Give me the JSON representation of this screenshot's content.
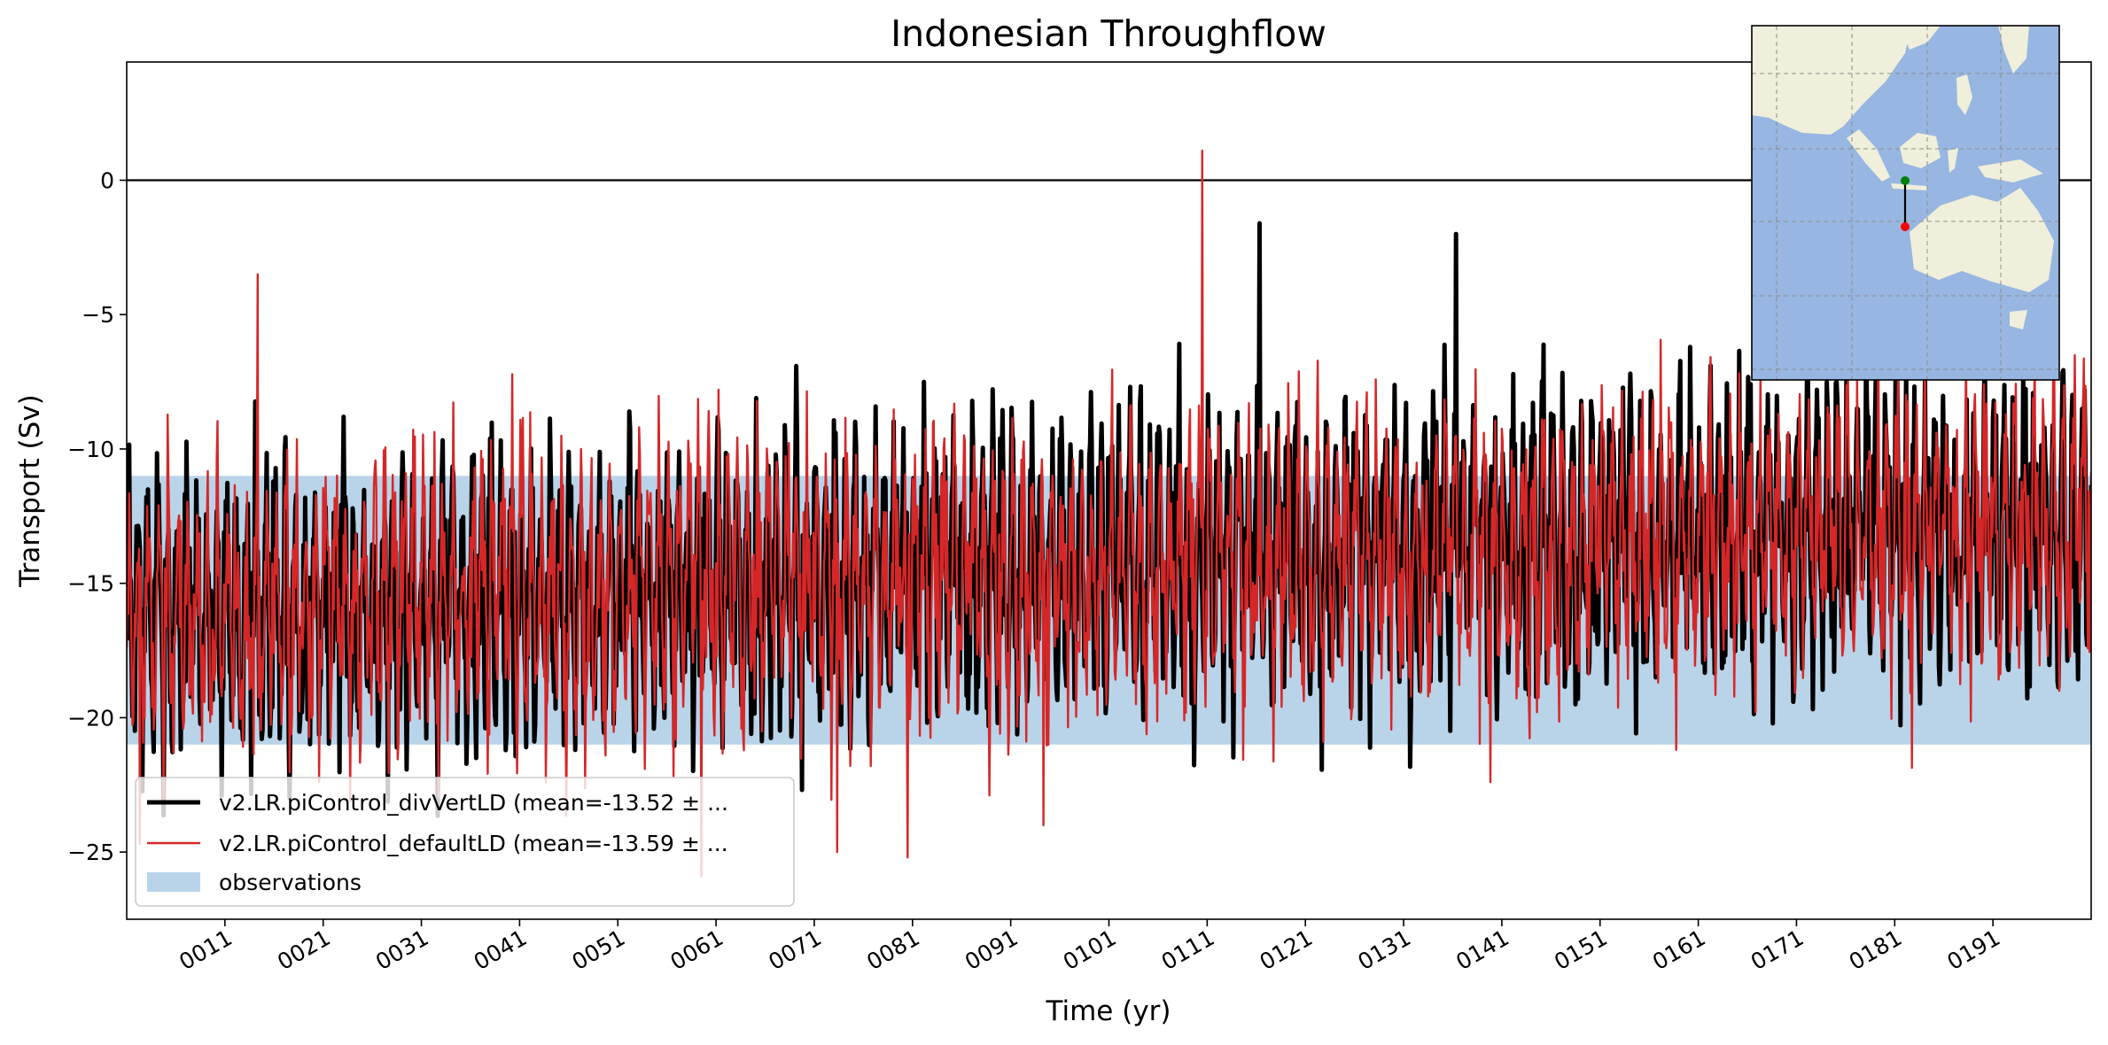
{
  "chart_data": {
    "type": "line",
    "title": "Indonesian Throughflow",
    "xlabel": "Time (yr)",
    "ylabel": "Transport (Sv)",
    "xlim": [
      1,
      201
    ],
    "ylim": [
      -27.5,
      4.4
    ],
    "x_ticks": [
      11,
      21,
      31,
      41,
      51,
      61,
      71,
      81,
      91,
      101,
      111,
      121,
      131,
      141,
      151,
      161,
      171,
      181,
      191
    ],
    "x_tick_labels": [
      "0011",
      "0021",
      "0031",
      "0041",
      "0051",
      "0061",
      "0071",
      "0081",
      "0091",
      "0101",
      "0111",
      "0121",
      "0131",
      "0141",
      "0151",
      "0161",
      "0171",
      "0181",
      "0191"
    ],
    "y_ticks": [
      0,
      -5,
      -10,
      -15,
      -20,
      -25
    ],
    "y_tick_labels": [
      "0",
      "−5",
      "−10",
      "−15",
      "−20",
      "−25"
    ],
    "zero_line": 0,
    "observations": {
      "name": "observations",
      "ymin": -21,
      "ymax": -11,
      "color": "#b9d4e9"
    },
    "series": [
      {
        "name": "v2.LR.piControl_divVertLD (mean=-13.52 ± ...",
        "color": "#000000",
        "mean": -13.52,
        "start_mean": -16.2,
        "end_mean": -12.6,
        "amplitude": 3.6,
        "samples_per_year": 12,
        "seed": 7
      },
      {
        "name": "v2.LR.piControl_defaultLD (mean=-13.59 ± ...",
        "color": "#d62728",
        "mean": -13.59,
        "start_mean": -16.2,
        "end_mean": -12.6,
        "amplitude": 3.6,
        "samples_per_year": 12,
        "seed": 19
      }
    ],
    "highlights": [
      {
        "series": 1,
        "year": 110.5,
        "value": 1.1
      },
      {
        "series": 1,
        "year": 139.8,
        "value": -22.4
      },
      {
        "series": 1,
        "year": 80.5,
        "value": -25.2
      },
      {
        "series": 1,
        "year": 73.3,
        "value": -25.0
      },
      {
        "series": 1,
        "year": 59.5,
        "value": -25.9
      },
      {
        "series": 1,
        "year": 94.3,
        "value": -24.0
      },
      {
        "series": 1,
        "year": 14.3,
        "value": -3.5
      },
      {
        "series": 0,
        "year": 116.3,
        "value": -1.6
      },
      {
        "series": 0,
        "year": 136.3,
        "value": -2.0
      },
      {
        "series": 1,
        "year": 2.3,
        "value": -24.7
      }
    ],
    "legend": {
      "location": "lower-left",
      "entries": [
        "v2.LR.piControl_divVertLD (mean=-13.52 ± ...",
        "v2.LR.piControl_defaultLD (mean=-13.59 ± ...",
        "observations"
      ]
    },
    "inset_map": {
      "location": "top-right",
      "region": "Indonesia and Australia",
      "ocean_color": "#97b6e1",
      "land_color": "#efefdb",
      "transect_start_color": "#008000",
      "transect_end_color": "#ff0000"
    }
  }
}
